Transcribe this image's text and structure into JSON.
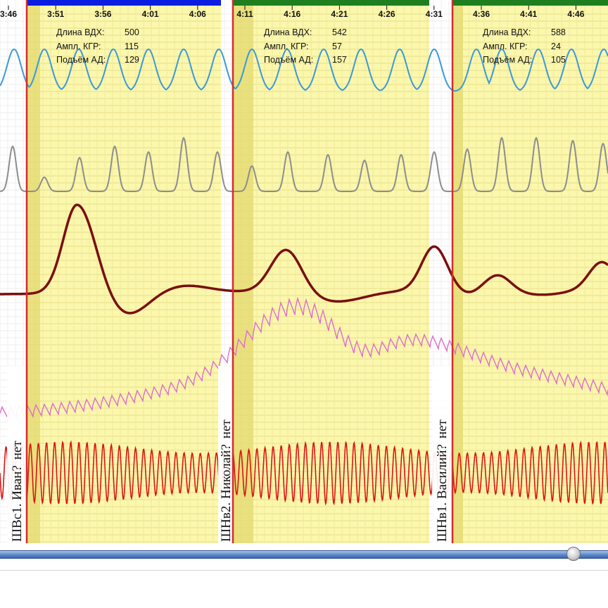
{
  "time_axis": {
    "ticks": [
      "3:46",
      "3:51",
      "3:56",
      "4:01",
      "4:06",
      "4:11",
      "4:16",
      "4:21",
      "4:26",
      "4:31",
      "4:36",
      "4:41",
      "4:46"
    ],
    "tick_seconds": [
      -180,
      120,
      420,
      720,
      1020,
      1320,
      1620,
      1920,
      2220,
      2520,
      2820,
      3120,
      3420
    ]
  },
  "question_stats": [
    {
      "length_label": "Длина ВДХ:",
      "length_value": "500",
      "ampl_label": "Ампл. КГР:",
      "ampl_value": "115",
      "bp_label": "Подъём АД:",
      "bp_value": "129"
    },
    {
      "length_label": "Длина ВДХ:",
      "length_value": "542",
      "ampl_label": "Ампл. КГР:",
      "ampl_value": "57",
      "bp_label": "Подъём АД:",
      "bp_value": "157"
    },
    {
      "length_label": "Длина ВДХ:",
      "length_value": "588",
      "ampl_label": "Ампл. КГР:",
      "ampl_value": "24",
      "bp_label": "Подъём АД:",
      "bp_value": "105"
    }
  ],
  "question_markers": [
    {
      "label": "ШВс1. Иван?",
      "answer": "нет",
      "marker_color": "#d22d2d",
      "bar_color": "#0b1ee0"
    },
    {
      "label": "ШНв2. Николай?",
      "answer": "нет",
      "marker_color": "#d22d2d",
      "bar_color": "#1f7f1f"
    },
    {
      "label": "ШНв1. Василий?",
      "answer": "нет",
      "marker_color": "#d22d2d",
      "bar_color": "#1f7f1f"
    }
  ],
  "colors": {
    "segment_background": "#fbf7ad",
    "segment_grid": "#e4dd86",
    "response_window": "#e5dc76",
    "breathing_channel": "#3a99d8",
    "cardio_channel": "#8d8d8d",
    "gsr_channel": "#7a0f10",
    "ppg_channel": "#dd6dcf",
    "pulse_channel": "#dc1414"
  },
  "channels": [
    {
      "id": "breathing",
      "icon": "breathing-wave-icon"
    },
    {
      "id": "cardio",
      "icon": "cardio-wave-icon"
    },
    {
      "id": "gsr",
      "icon": "gsr-curve-icon"
    },
    {
      "id": "ppg",
      "icon": "ppg-wave-icon"
    },
    {
      "id": "pulse",
      "icon": "pulse-wave-icon"
    }
  ],
  "scrollbar": {
    "position": 0.96
  }
}
